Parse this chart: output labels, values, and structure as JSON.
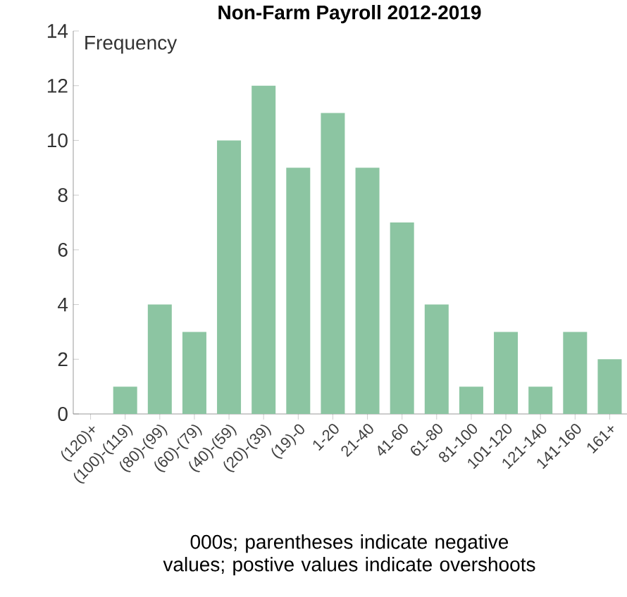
{
  "chart_data": {
    "type": "bar",
    "title": "Non-Farm Payroll 2012-2019",
    "ylabel": "Frequency",
    "categories": [
      "(120)+",
      "(100)-(119)",
      "(80)-(99)",
      "(60)-(79)",
      "(40)-(59)",
      "(20)-(39)",
      "(19)-0",
      "1-20",
      "21-40",
      "41-60",
      "61-80",
      "81-100",
      "101-120",
      "121-140",
      "141-160",
      "161+"
    ],
    "values": [
      0,
      1,
      4,
      3,
      10,
      12,
      9,
      11,
      9,
      7,
      4,
      1,
      3,
      1,
      3,
      2
    ],
    "color": "#8cc5a2",
    "ylim": [
      0,
      14
    ],
    "yticks": [
      0,
      2,
      4,
      6,
      8,
      10,
      12,
      14
    ],
    "grid": false,
    "annotations": [
      "000s; parentheses indicate negative values; postive values indicate overshoots"
    ]
  }
}
